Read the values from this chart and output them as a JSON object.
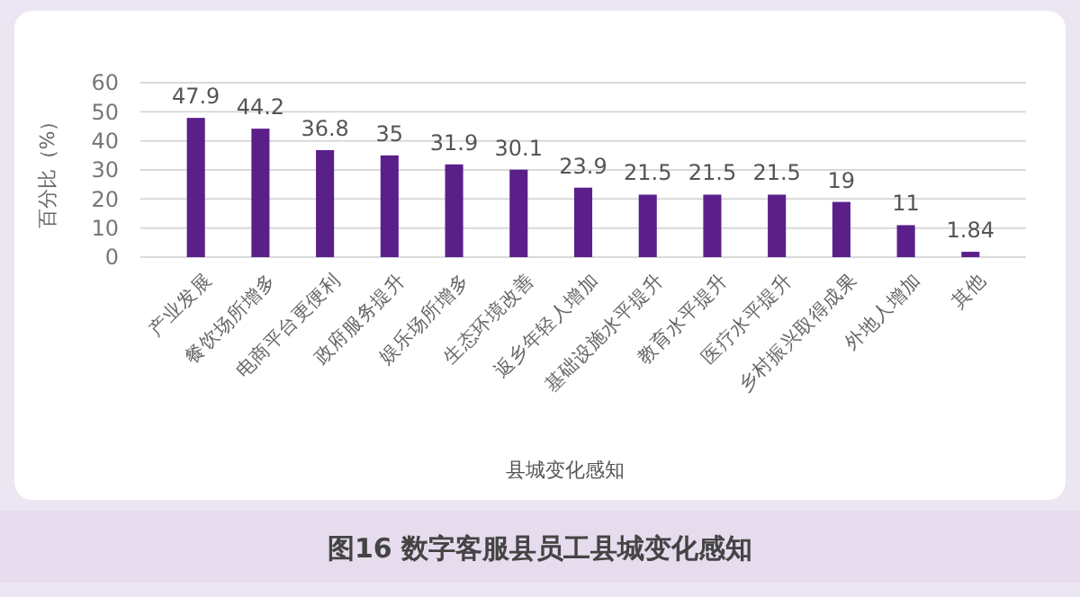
{
  "chart_data": {
    "type": "bar",
    "title": "图16 数字客服县员工县城变化感知",
    "xlabel": "县城变化感知",
    "ylabel": "百分比（%）",
    "categories": [
      "产业发展",
      "餐饮场所增多",
      "电商平台更便利",
      "政府服务提升",
      "娱乐场所增多",
      "生态环境改善",
      "返乡年轻人增加",
      "基础设施水平提升",
      "教育水平提升",
      "医疗水平提升",
      "乡村振兴取得成果",
      "外地人增加",
      "其他"
    ],
    "values": [
      47.9,
      44.2,
      36.8,
      35,
      31.9,
      30.1,
      23.9,
      21.5,
      21.5,
      21.5,
      19,
      11,
      1.84
    ],
    "color": "#5b1f8a",
    "ylim": [
      0,
      60
    ],
    "yticks": [
      0,
      10,
      20,
      30,
      40,
      50,
      60
    ],
    "grid": "y",
    "data_labels": true
  }
}
